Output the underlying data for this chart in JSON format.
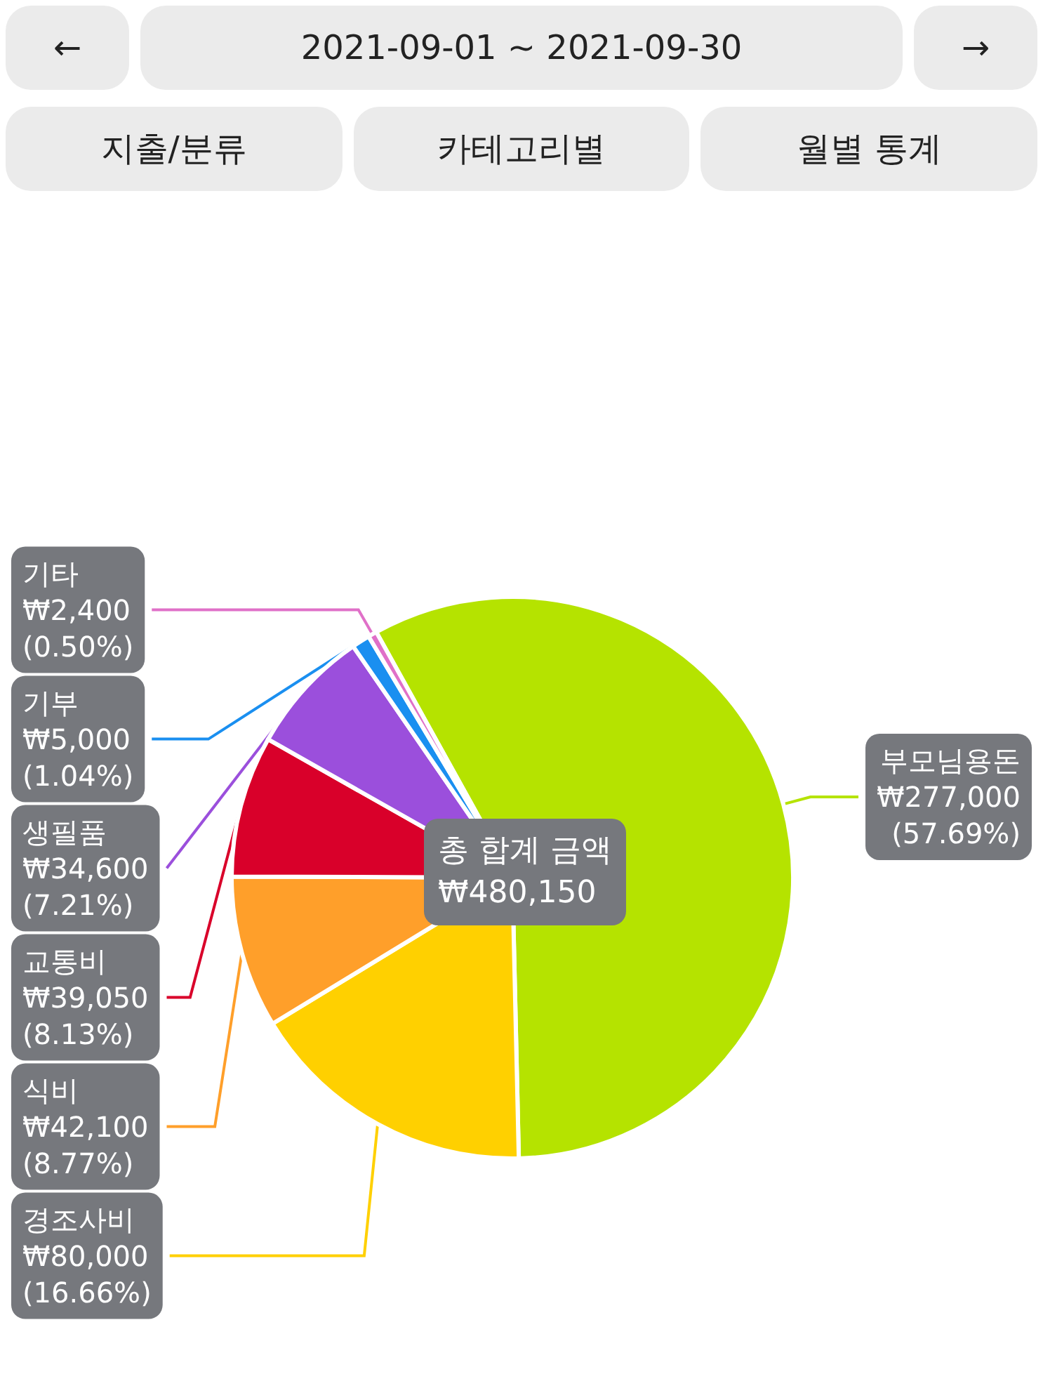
{
  "chart_data": {
    "type": "pie",
    "title": "2021-09-01 ~ 2021-09-30",
    "categories": [
      "부모님용돈",
      "경조사비",
      "식비",
      "교통비",
      "생필품",
      "기부",
      "기타"
    ],
    "values": [
      277000,
      80000,
      42100,
      39050,
      34600,
      5000,
      2400
    ],
    "colors": [
      "#b5e300",
      "#ffd000",
      "#ff9f2a",
      "#d9002a",
      "#9b4fdc",
      "#1a8ff0",
      "#e070c8"
    ],
    "value_labels": [
      "₩277,000\n(57.69%)",
      "₩80,000\n(16.66%)",
      "₩42,100\n(8.77%)",
      "₩39,050\n(8.13%)",
      "₩34,600\n(7.21%)",
      "₩5,000\n(1.04%)",
      "₩2,400\n(0.50%)"
    ],
    "annotations": [
      "←",
      "→",
      "지출/분류",
      "카테고리별",
      "월별 통계",
      "총 합계 금액\n₩480,150"
    ],
    "legend": false
  }
}
